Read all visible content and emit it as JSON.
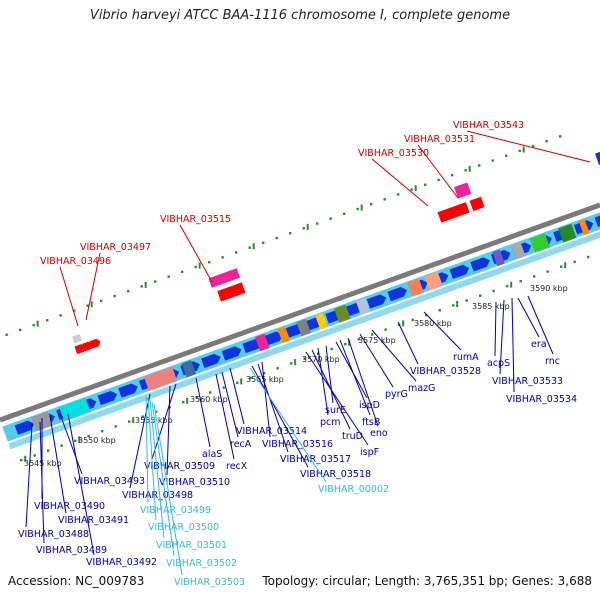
{
  "title": "Vibrio harveyi ATCC BAA-1116 chromosome I, complete genome",
  "footer": {
    "accession": "Accession: NC_009783",
    "summary": "Topology: circular; Length: 3,765,351 bp; Genes: 3,688"
  },
  "colors": {
    "red_label": "#cc0000",
    "blue_label": "#0000aa",
    "cyan_label": "#33bbdd",
    "backbone": "#7a7a7a",
    "track_fill": "#55ccee",
    "gene_forward": "#1133dd",
    "tick_green": "#2e8b2e"
  },
  "scale_labels": [
    {
      "text": "3545 kbp"
    },
    {
      "text": "3550 kbp"
    },
    {
      "text": "3555 kbp"
    },
    {
      "text": "3560 kbp"
    },
    {
      "text": "3565 kbp"
    },
    {
      "text": "3570 kbp"
    },
    {
      "text": "3575 kbp"
    },
    {
      "text": "3580 kbp"
    },
    {
      "text": "3585 kbp"
    },
    {
      "text": "3590 kbp"
    }
  ],
  "top_labels": [
    {
      "text": "VIBHAR_03543"
    },
    {
      "text": "VIBHAR_03531"
    },
    {
      "text": "VIBHAR_03530"
    },
    {
      "text": "VIBHAR_03515"
    },
    {
      "text": "VIBHAR_03497"
    },
    {
      "text": "VIBHAR_03496"
    }
  ],
  "bottom_labels": [
    {
      "text": "rumA",
      "color": "blue"
    },
    {
      "text": "VIBHAR_03528",
      "color": "blue"
    },
    {
      "text": "mazG",
      "color": "blue"
    },
    {
      "text": "pyrG",
      "color": "blue"
    },
    {
      "text": "eno",
      "color": "blue"
    },
    {
      "text": "ftsB",
      "color": "blue"
    },
    {
      "text": "ispD",
      "color": "blue"
    },
    {
      "text": "surE",
      "color": "blue"
    },
    {
      "text": "pcm",
      "color": "blue"
    },
    {
      "text": "truD",
      "color": "blue"
    },
    {
      "text": "ispF",
      "color": "blue"
    },
    {
      "text": "VIBHAR_03514",
      "color": "blue"
    },
    {
      "text": "recA",
      "color": "blue"
    },
    {
      "text": "recX",
      "color": "blue"
    },
    {
      "text": "alaS",
      "color": "blue"
    },
    {
      "text": "VIBHAR_03509",
      "color": "blue"
    },
    {
      "text": "VIBHAR_03510",
      "color": "blue"
    },
    {
      "text": "VIBHAR_03516",
      "color": "blue"
    },
    {
      "text": "VIBHAR_03517",
      "color": "blue"
    },
    {
      "text": "VIBHAR_03518",
      "color": "blue"
    },
    {
      "text": "VIBHAR_00002",
      "color": "cyan"
    },
    {
      "text": "VIBHAR_03493",
      "color": "blue"
    },
    {
      "text": "VIBHAR_03498",
      "color": "blue"
    },
    {
      "text": "VIBHAR_03499",
      "color": "cyan"
    },
    {
      "text": "VIBHAR_03500",
      "color": "cyan"
    },
    {
      "text": "VIBHAR_03501",
      "color": "cyan"
    },
    {
      "text": "VIBHAR_03502",
      "color": "cyan"
    },
    {
      "text": "VIBHAR_03503",
      "color": "cyan"
    },
    {
      "text": "VIBHAR_03490",
      "color": "blue"
    },
    {
      "text": "VIBHAR_03491",
      "color": "blue"
    },
    {
      "text": "VIBHAR_03488",
      "color": "blue"
    },
    {
      "text": "VIBHAR_03489",
      "color": "blue"
    },
    {
      "text": "VIBHAR_03492",
      "color": "blue"
    },
    {
      "text": "acpS",
      "color": "blue"
    },
    {
      "text": "era",
      "color": "blue"
    },
    {
      "text": "rnc",
      "color": "blue"
    },
    {
      "text": "VIBHAR_03533",
      "color": "blue"
    },
    {
      "text": "VIBHAR_03534",
      "color": "blue"
    }
  ]
}
